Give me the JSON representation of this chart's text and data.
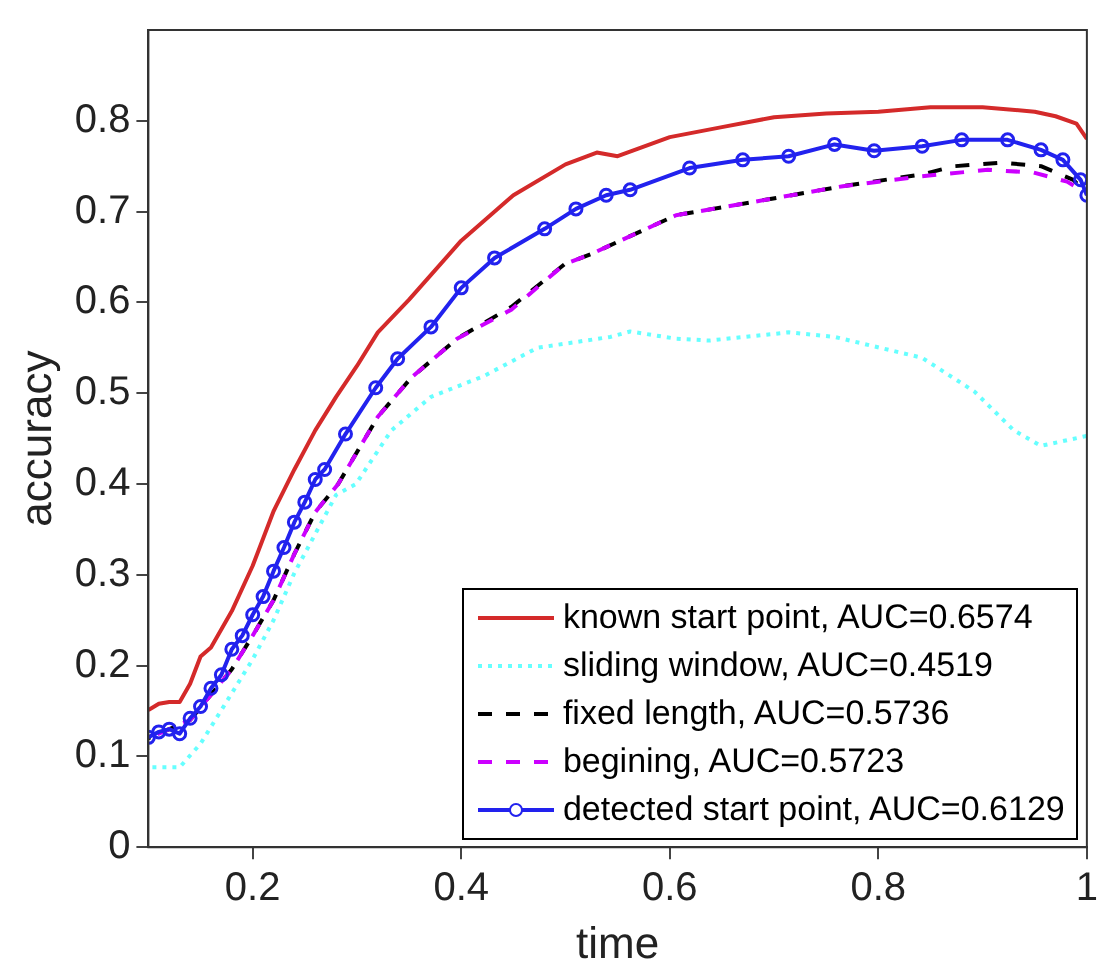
{
  "chart_data": {
    "type": "line",
    "xlabel": "time",
    "ylabel": "accuracy",
    "xlim": [
      0.1,
      1
    ],
    "ylim": [
      0,
      0.9
    ],
    "xticks": [
      0.2,
      0.4,
      0.6,
      0.8,
      1
    ],
    "yticks": [
      0,
      0.1,
      0.2,
      0.3,
      0.4,
      0.5,
      0.6,
      0.7,
      0.8
    ],
    "grid": false,
    "legend": "bottom right",
    "series": [
      {
        "name": "known start point, AUC=0.6574",
        "color": "#d42a2a",
        "line_style": "solid",
        "marker": "none",
        "x": [
          0.1,
          0.11,
          0.12,
          0.13,
          0.14,
          0.15,
          0.16,
          0.17,
          0.18,
          0.2,
          0.22,
          0.24,
          0.26,
          0.28,
          0.3,
          0.32,
          0.35,
          0.4,
          0.45,
          0.5,
          0.53,
          0.55,
          0.6,
          0.65,
          0.7,
          0.75,
          0.8,
          0.85,
          0.9,
          0.95,
          0.97,
          0.99,
          1
        ],
        "values": [
          0.151,
          0.158,
          0.16,
          0.16,
          0.18,
          0.21,
          0.22,
          0.24,
          0.26,
          0.31,
          0.37,
          0.416,
          0.459,
          0.496,
          0.53,
          0.567,
          0.603,
          0.668,
          0.718,
          0.752,
          0.765,
          0.761,
          0.782,
          0.793,
          0.804,
          0.808,
          0.81,
          0.815,
          0.815,
          0.81,
          0.805,
          0.797,
          0.78
        ]
      },
      {
        "name": "sliding window, AUC=0.4519",
        "color": "#66ffff",
        "line_style": "dotted",
        "marker": "none",
        "x": [
          0.1,
          0.13,
          0.15,
          0.17,
          0.2,
          0.22,
          0.24,
          0.26,
          0.28,
          0.299,
          0.333,
          0.371,
          0.422,
          0.473,
          0.543,
          0.562,
          0.606,
          0.638,
          0.714,
          0.758,
          0.842,
          0.892,
          0.93,
          0.956,
          1
        ],
        "values": [
          0.088,
          0.088,
          0.114,
          0.151,
          0.207,
          0.25,
          0.302,
          0.345,
          0.388,
          0.4,
          0.459,
          0.496,
          0.519,
          0.55,
          0.562,
          0.568,
          0.56,
          0.558,
          0.567,
          0.562,
          0.539,
          0.502,
          0.459,
          0.442,
          0.453
        ]
      },
      {
        "name": "fixed length, AUC=0.5736",
        "color": "#000000",
        "line_style": "dashed",
        "marker": "none",
        "x": [
          0.1,
          0.14,
          0.16,
          0.18,
          0.2,
          0.22,
          0.24,
          0.26,
          0.282,
          0.32,
          0.352,
          0.396,
          0.448,
          0.499,
          0.524,
          0.606,
          0.682,
          0.766,
          0.842,
          0.873,
          0.918,
          0.956,
          0.987,
          1
        ],
        "values": [
          0.12,
          0.14,
          0.168,
          0.196,
          0.233,
          0.272,
          0.323,
          0.369,
          0.4,
          0.474,
          0.517,
          0.56,
          0.595,
          0.642,
          0.653,
          0.696,
          0.711,
          0.728,
          0.741,
          0.75,
          0.754,
          0.75,
          0.735,
          0.72
        ]
      },
      {
        "name": "begining, AUC=0.5723",
        "color": "#cc00ff",
        "line_style": "dashed",
        "marker": "none",
        "x": [
          0.1,
          0.14,
          0.16,
          0.18,
          0.2,
          0.22,
          0.24,
          0.26,
          0.282,
          0.32,
          0.352,
          0.396,
          0.448,
          0.499,
          0.524,
          0.606,
          0.682,
          0.766,
          0.842,
          0.905,
          0.949,
          0.981,
          1
        ],
        "values": [
          0.12,
          0.14,
          0.168,
          0.196,
          0.233,
          0.272,
          0.323,
          0.369,
          0.4,
          0.474,
          0.517,
          0.56,
          0.592,
          0.642,
          0.653,
          0.696,
          0.711,
          0.728,
          0.739,
          0.746,
          0.743,
          0.733,
          0.72
        ]
      },
      {
        "name": "detected start point, AUC=0.6129",
        "color": "#2222ee",
        "line_style": "solid",
        "marker": "circle",
        "x": [
          0.1,
          0.11,
          0.12,
          0.13,
          0.14,
          0.15,
          0.16,
          0.17,
          0.18,
          0.19,
          0.2,
          0.21,
          0.22,
          0.23,
          0.24,
          0.25,
          0.26,
          0.269,
          0.289,
          0.318,
          0.339,
          0.371,
          0.4,
          0.432,
          0.48,
          0.51,
          0.539,
          0.562,
          0.619,
          0.67,
          0.714,
          0.758,
          0.796,
          0.842,
          0.88,
          0.924,
          0.956,
          0.977,
          0.994,
          1
        ],
        "values": [
          0.121,
          0.127,
          0.13,
          0.125,
          0.142,
          0.155,
          0.175,
          0.19,
          0.218,
          0.233,
          0.256,
          0.276,
          0.304,
          0.33,
          0.358,
          0.38,
          0.405,
          0.416,
          0.455,
          0.506,
          0.538,
          0.573,
          0.616,
          0.649,
          0.681,
          0.703,
          0.718,
          0.724,
          0.748,
          0.757,
          0.761,
          0.774,
          0.767,
          0.772,
          0.779,
          0.779,
          0.768,
          0.757,
          0.735,
          0.718
        ]
      }
    ]
  }
}
